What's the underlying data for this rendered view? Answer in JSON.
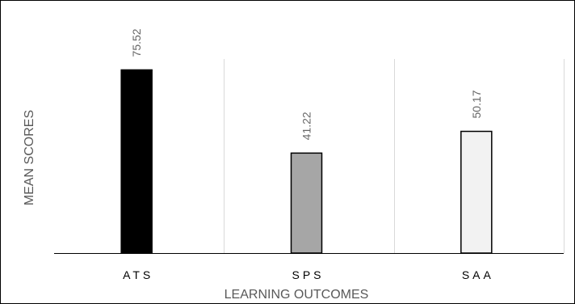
{
  "chart_data": {
    "type": "bar",
    "title": "",
    "xlabel": "LEARNING OUTCOMES",
    "ylabel": "MEAN SCORES",
    "categories": [
      "ATS",
      "SPS",
      "SAA"
    ],
    "values": [
      75.52,
      41.22,
      50.17
    ],
    "value_labels": [
      "75.52",
      "41.22",
      "50.17"
    ],
    "colors": [
      "#000000",
      "#a6a6a6",
      "#f2f2f2"
    ],
    "ylim": [
      0,
      100
    ],
    "grid": true,
    "legend": "none"
  }
}
